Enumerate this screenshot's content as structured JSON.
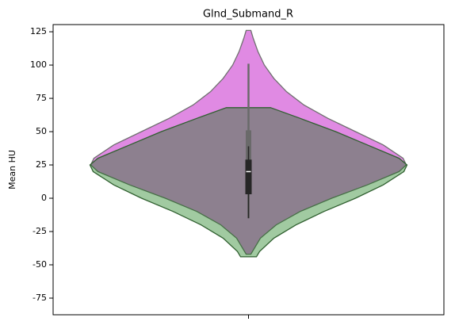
{
  "chart_data": {
    "type": "violin",
    "title": "Glnd_Submand_R",
    "y_label": "Mean HU",
    "categories": [
      null
    ],
    "ylim": [
      -87.5,
      130.4
    ],
    "yticks": [
      -75,
      -50,
      -25,
      0,
      25,
      50,
      75,
      100,
      125
    ],
    "series": [
      {
        "color": "#e08ae3",
        "edge_color": "#6f6f6f",
        "y": [
          126,
          120,
          110,
          100,
          90,
          80,
          70,
          60,
          50,
          40,
          30,
          25,
          20,
          10,
          0,
          -10,
          -20,
          -30,
          -40,
          -42
        ],
        "density": [
          0.015,
          0.03,
          0.06,
          0.1,
          0.16,
          0.24,
          0.35,
          0.5,
          0.675,
          0.85,
          0.975,
          0.995,
          0.95,
          0.75,
          0.525,
          0.325,
          0.175,
          0.075,
          0.025,
          0.015
        ],
        "box": {
          "low": -15,
          "q1": 3,
          "median": 27,
          "q3": 51,
          "high": 101
        },
        "box_color": "#6a6a6a"
      },
      {
        "color": "#007000",
        "edge_color": "#2f5f2f",
        "y": [
          68,
          60,
          50,
          40,
          30,
          25,
          20,
          10,
          0,
          -10,
          -20,
          -30,
          -40,
          -44
        ],
        "density": [
          0.14,
          0.325,
          0.55,
          0.75,
          0.95,
          1,
          0.98,
          0.85,
          0.675,
          0.475,
          0.3,
          0.16,
          0.07,
          0.05
        ],
        "box": {
          "low": -15,
          "q1": 3,
          "median": 20,
          "q3": 29,
          "high": 39
        },
        "box_color": "#262626"
      }
    ]
  }
}
